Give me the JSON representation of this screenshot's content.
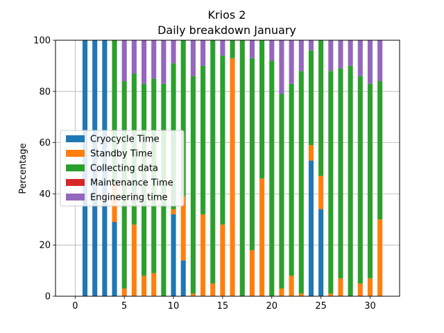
{
  "chart_data": {
    "type": "bar",
    "stacked": true,
    "title": "Krios 2",
    "subtitle": "Daily breakdown January",
    "xlabel": "",
    "ylabel": "Percentage",
    "xlim": [
      -2,
      33
    ],
    "ylim": [
      0,
      100
    ],
    "xticks": [
      0,
      5,
      10,
      15,
      20,
      25,
      30
    ],
    "yticks": [
      0,
      20,
      40,
      60,
      80,
      100
    ],
    "grid": true,
    "legend_position": "center-left",
    "x": [
      1,
      2,
      3,
      4,
      5,
      6,
      7,
      8,
      9,
      10,
      11,
      12,
      13,
      14,
      15,
      16,
      17,
      18,
      19,
      20,
      21,
      22,
      23,
      24,
      25,
      26,
      27,
      28,
      29,
      30,
      31
    ],
    "series": [
      {
        "name": "Cryocycle Time",
        "color": "#1f77b4",
        "values": [
          100,
          100,
          100,
          29,
          0,
          0,
          0,
          0,
          0,
          32,
          14,
          0,
          0,
          0,
          0,
          0,
          0,
          0,
          0,
          0,
          0,
          0,
          0,
          53,
          34,
          0,
          0,
          0,
          0,
          0,
          0
        ]
      },
      {
        "name": "Standby Time",
        "color": "#ff7f0e",
        "values": [
          0,
          0,
          0,
          15,
          3,
          28,
          8,
          9,
          0,
          2,
          25,
          1,
          32,
          5,
          28,
          93,
          0,
          18,
          46,
          0,
          3,
          8,
          1,
          6,
          13,
          1,
          7,
          0,
          5,
          7,
          30
        ]
      },
      {
        "name": "Collecting data",
        "color": "#2ca02c",
        "values": [
          0,
          0,
          0,
          56,
          81,
          59,
          75,
          76,
          83,
          57,
          61,
          85,
          58,
          95,
          66,
          7,
          100,
          75,
          54,
          92,
          76,
          75,
          87,
          37,
          53,
          87,
          82,
          90,
          81,
          76,
          54
        ]
      },
      {
        "name": "Maintenance Time",
        "color": "#d62728",
        "values": [
          0,
          0,
          0,
          0,
          0,
          0,
          0,
          0,
          0,
          0,
          0,
          0,
          0,
          0,
          0,
          0,
          0,
          0,
          0,
          0,
          0,
          0,
          0,
          0,
          0,
          0,
          0,
          0,
          0,
          0,
          0
        ]
      },
      {
        "name": "Engineering time",
        "color": "#9467bd",
        "values": [
          0,
          0,
          0,
          0,
          16,
          13,
          17,
          15,
          17,
          9,
          0,
          14,
          10,
          0,
          6,
          0,
          0,
          7,
          0,
          8,
          21,
          17,
          12,
          4,
          0,
          12,
          11,
          10,
          14,
          17,
          16
        ]
      }
    ]
  }
}
